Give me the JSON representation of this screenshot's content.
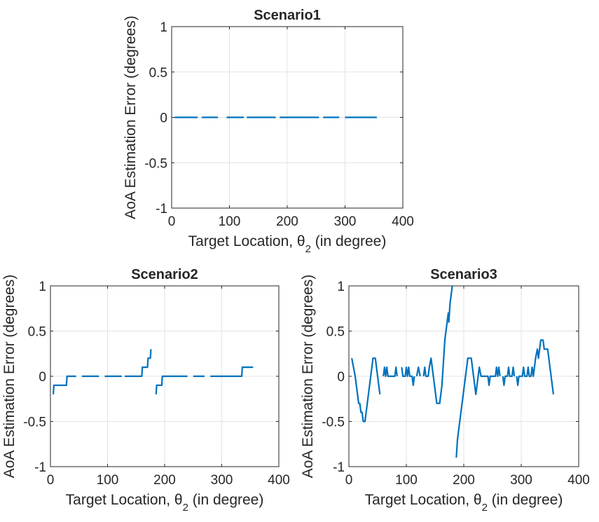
{
  "chart_data": [
    {
      "type": "line",
      "title": "Scenario1",
      "xlabel": "Target Location, θ2 (in degree)",
      "ylabel": "AoA Estimation Error (degrees)",
      "xlim": [
        0,
        400
      ],
      "ylim": [
        -1,
        1
      ],
      "xticks": [
        0,
        100,
        200,
        300,
        400
      ],
      "yticks": [
        -1,
        -0.5,
        0,
        0.5,
        1
      ],
      "grid": true,
      "color": "#0072BD",
      "segments": [
        [
          [
            5,
            0
          ],
          [
            45,
            0
          ]
        ],
        [
          [
            52,
            0
          ],
          [
            80,
            0
          ]
        ],
        [
          [
            95,
            0
          ],
          [
            125,
            0
          ]
        ],
        [
          [
            130,
            0
          ],
          [
            180,
            0
          ]
        ],
        [
          [
            187,
            0
          ],
          [
            255,
            0
          ]
        ],
        [
          [
            262,
            0
          ],
          [
            290,
            0
          ]
        ],
        [
          [
            300,
            0
          ],
          [
            355,
            0
          ]
        ]
      ]
    },
    {
      "type": "line",
      "title": "Scenario2",
      "xlabel": "Target Location, θ2 (in degree)",
      "ylabel": "AoA Estimation Error (degrees)",
      "xlim": [
        0,
        400
      ],
      "ylim": [
        -1,
        1
      ],
      "xticks": [
        0,
        100,
        200,
        300,
        400
      ],
      "yticks": [
        -1,
        -0.5,
        0,
        0.5,
        1
      ],
      "grid": true,
      "color": "#0072BD",
      "segments": [
        [
          [
            5,
            -0.2
          ],
          [
            6,
            -0.1
          ],
          [
            28,
            -0.1
          ],
          [
            29,
            0
          ],
          [
            45,
            0
          ]
        ],
        [
          [
            55,
            0
          ],
          [
            85,
            0
          ]
        ],
        [
          [
            95,
            0
          ],
          [
            125,
            0
          ]
        ],
        [
          [
            130,
            0
          ],
          [
            160,
            0
          ],
          [
            161,
            0.1
          ],
          [
            170,
            0.1
          ],
          [
            171,
            0.2
          ],
          [
            175,
            0.2
          ],
          [
            176,
            0.3
          ]
        ],
        [
          [
            185,
            -0.2
          ],
          [
            186,
            -0.1
          ],
          [
            195,
            -0.1
          ],
          [
            196,
            0
          ],
          [
            240,
            0
          ]
        ],
        [
          [
            250,
            0
          ],
          [
            270,
            0
          ]
        ],
        [
          [
            280,
            0
          ],
          [
            335,
            0
          ],
          [
            336,
            0.1
          ],
          [
            355,
            0.1
          ]
        ]
      ]
    },
    {
      "type": "line",
      "title": "Scenario3",
      "xlabel": "Target Location, θ2 (in degree)",
      "ylabel": "AoA Estimation Error (degrees)",
      "xlim": [
        0,
        400
      ],
      "ylim": [
        -1,
        1
      ],
      "xticks": [
        0,
        100,
        200,
        300,
        400
      ],
      "yticks": [
        -1,
        -0.5,
        0,
        0.5,
        1
      ],
      "grid": true,
      "color": "#0072BD",
      "segments": [
        [
          [
            5,
            0.2
          ],
          [
            8,
            0.1
          ],
          [
            11,
            0
          ],
          [
            13,
            -0.1
          ],
          [
            15,
            -0.2
          ],
          [
            17,
            -0.3
          ],
          [
            19,
            -0.3
          ],
          [
            21,
            -0.4
          ],
          [
            23,
            -0.4
          ],
          [
            25,
            -0.5
          ],
          [
            28,
            -0.5
          ],
          [
            30,
            -0.4
          ],
          [
            32,
            -0.3
          ],
          [
            34,
            -0.2
          ],
          [
            36,
            -0.1
          ],
          [
            38,
            0
          ],
          [
            40,
            0.1
          ],
          [
            42,
            0.2
          ],
          [
            46,
            0.2
          ],
          [
            48,
            0.1
          ],
          [
            50,
            0
          ],
          [
            52,
            -0.1
          ],
          [
            54,
            -0.2
          ]
        ],
        [
          [
            60,
            0
          ],
          [
            62,
            0.1
          ],
          [
            64,
            0
          ],
          [
            66,
            0.1
          ],
          [
            68,
            0
          ],
          [
            80,
            0
          ],
          [
            82,
            0.1
          ],
          [
            84,
            0
          ]
        ],
        [
          [
            92,
            0.1
          ],
          [
            94,
            0
          ],
          [
            98,
            0
          ],
          [
            100,
            0.1
          ],
          [
            102,
            0
          ],
          [
            104,
            0.1
          ],
          [
            106,
            0
          ],
          [
            110,
            0
          ],
          [
            112,
            -0.1
          ],
          [
            114,
            0
          ]
        ],
        [
          [
            118,
            0
          ],
          [
            121,
            0.1
          ],
          [
            124,
            0
          ]
        ],
        [
          [
            130,
            0
          ],
          [
            132,
            0.1
          ],
          [
            134,
            0
          ],
          [
            138,
            0
          ],
          [
            140,
            0.1
          ],
          [
            143,
            0.2
          ],
          [
            145,
            0.1
          ],
          [
            147,
            0
          ],
          [
            149,
            -0.1
          ],
          [
            151,
            -0.2
          ],
          [
            153,
            -0.3
          ],
          [
            158,
            -0.3
          ],
          [
            160,
            -0.2
          ],
          [
            162,
            -0.1
          ],
          [
            163,
            0
          ],
          [
            165,
            0.2
          ],
          [
            167,
            0.4
          ],
          [
            169,
            0.5
          ],
          [
            171,
            0.6
          ],
          [
            173,
            0.7
          ],
          [
            174,
            0.6
          ],
          [
            176,
            0.8
          ],
          [
            178,
            0.9
          ],
          [
            180,
            1.0
          ]
        ],
        [
          [
            187,
            -0.9
          ],
          [
            189,
            -0.7
          ],
          [
            191,
            -0.6
          ],
          [
            193,
            -0.5
          ],
          [
            195,
            -0.4
          ],
          [
            197,
            -0.3
          ],
          [
            199,
            -0.2
          ],
          [
            201,
            -0.1
          ],
          [
            203,
            0
          ],
          [
            205,
            0.1
          ],
          [
            207,
            0.2
          ],
          [
            213,
            0.2
          ],
          [
            215,
            0.1
          ],
          [
            217,
            0
          ],
          [
            219,
            -0.1
          ],
          [
            221,
            -0.2
          ],
          [
            223,
            -0.1
          ],
          [
            225,
            0
          ],
          [
            227,
            0.1
          ],
          [
            230,
            0
          ],
          [
            242,
            0
          ],
          [
            244,
            -0.1
          ],
          [
            246,
            0
          ],
          [
            255,
            0
          ],
          [
            257,
            0.1
          ],
          [
            259,
            0
          ],
          [
            261,
            0.1
          ],
          [
            263,
            0
          ]
        ],
        [
          [
            268,
            0
          ],
          [
            270,
            -0.1
          ],
          [
            272,
            0
          ],
          [
            276,
            0
          ],
          [
            278,
            0.1
          ],
          [
            280,
            0
          ],
          [
            284,
            0
          ],
          [
            286,
            0.1
          ],
          [
            288,
            0
          ]
        ],
        [
          [
            292,
            0
          ],
          [
            294,
            -0.1
          ],
          [
            296,
            0
          ],
          [
            302,
            0
          ],
          [
            304,
            0.1
          ],
          [
            306,
            0
          ],
          [
            310,
            0
          ],
          [
            312,
            0.1
          ],
          [
            314,
            0
          ],
          [
            317,
            0
          ],
          [
            319,
            0.1
          ],
          [
            321,
            0
          ],
          [
            323,
            0.1
          ],
          [
            325,
            0.2
          ],
          [
            328,
            0.3
          ],
          [
            330,
            0.2
          ],
          [
            332,
            0.3
          ],
          [
            334,
            0.4
          ],
          [
            338,
            0.4
          ],
          [
            340,
            0.3
          ],
          [
            346,
            0.3
          ],
          [
            348,
            0.2
          ],
          [
            350,
            0.1
          ],
          [
            352,
            0
          ],
          [
            354,
            -0.1
          ],
          [
            356,
            -0.2
          ]
        ]
      ]
    }
  ]
}
